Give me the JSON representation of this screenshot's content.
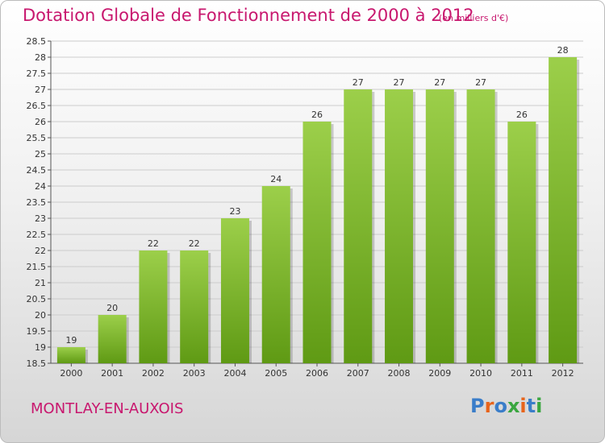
{
  "header": {
    "title": "Dotation Globale de Fonctionnement de 2000 à 2012",
    "subtitle": "(en milliers d'€)"
  },
  "footer": {
    "city": "MONTLAY-EN-AUXOIS",
    "logo": "Proxiti"
  },
  "colors": {
    "title": "#c8176e",
    "bar_light": "#9ccf4a",
    "bar_dark": "#5f9a14",
    "grid": "#cccccc"
  },
  "chart_data": {
    "type": "bar",
    "title": "Dotation Globale de Fonctionnement de 2000 à 2012",
    "subtitle": "(en milliers d'€)",
    "xlabel": "",
    "ylabel": "",
    "categories": [
      "2000",
      "2001",
      "2002",
      "2003",
      "2004",
      "2005",
      "2006",
      "2007",
      "2008",
      "2009",
      "2010",
      "2011",
      "2012"
    ],
    "values": [
      19,
      20,
      22,
      22,
      23,
      24,
      26,
      27,
      27,
      27,
      27,
      26,
      28
    ],
    "value_labels": [
      "19",
      "20",
      "22",
      "22",
      "23",
      "24",
      "26",
      "27",
      "27",
      "27",
      "27",
      "26",
      "28"
    ],
    "ylim": [
      18.5,
      28.5
    ],
    "yticks": [
      "18.5",
      "19",
      "19.5",
      "20",
      "20.5",
      "21",
      "21.5",
      "22",
      "22.5",
      "23",
      "23.5",
      "24",
      "24.5",
      "25",
      "25.5",
      "26",
      "26.5",
      "27",
      "27.5",
      "28",
      "28.5"
    ],
    "grid": true,
    "legend": "none"
  }
}
